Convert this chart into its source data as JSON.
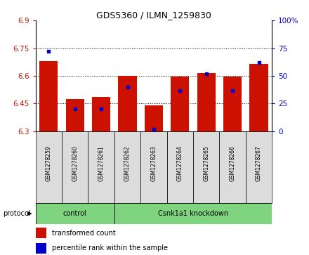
{
  "title": "GDS5360 / ILMN_1259830",
  "samples": [
    "GSM1278259",
    "GSM1278260",
    "GSM1278261",
    "GSM1278262",
    "GSM1278263",
    "GSM1278264",
    "GSM1278265",
    "GSM1278266",
    "GSM1278267"
  ],
  "red_values": [
    6.68,
    6.475,
    6.485,
    6.6,
    6.44,
    6.595,
    6.615,
    6.595,
    6.665
  ],
  "blue_values": [
    72,
    20,
    20,
    40,
    2,
    37,
    52,
    37,
    62
  ],
  "ylim": [
    6.3,
    6.9
  ],
  "y2lim": [
    0,
    100
  ],
  "yticks": [
    6.3,
    6.45,
    6.6,
    6.75,
    6.9
  ],
  "y2ticks": [
    0,
    25,
    50,
    75,
    100
  ],
  "ytick_labels": [
    "6.3",
    "6.45",
    "6.6",
    "6.75",
    "6.9"
  ],
  "y2tick_labels": [
    "0",
    "25",
    "50",
    "75",
    "100%"
  ],
  "ctrl_indices": [
    0,
    1,
    2
  ],
  "kd_indices": [
    3,
    4,
    5,
    6,
    7,
    8
  ],
  "ctrl_label": "control",
  "kd_label": "Csnk1a1 knockdown",
  "group_color": "#7FD47F",
  "bar_color": "#CC1100",
  "dot_color": "#0000CC",
  "bar_width": 0.7,
  "ybase": 6.3,
  "protocol_label": "protocol",
  "legend_red_label": "transformed count",
  "legend_blue_label": "percentile rank within the sample",
  "grid_color": "black",
  "sample_box_color": "#DCDCDC",
  "plot_bg": "white",
  "title_fontsize": 9,
  "axis_fontsize": 7.5,
  "sample_fontsize": 5.5,
  "group_fontsize": 7,
  "legend_fontsize": 7
}
